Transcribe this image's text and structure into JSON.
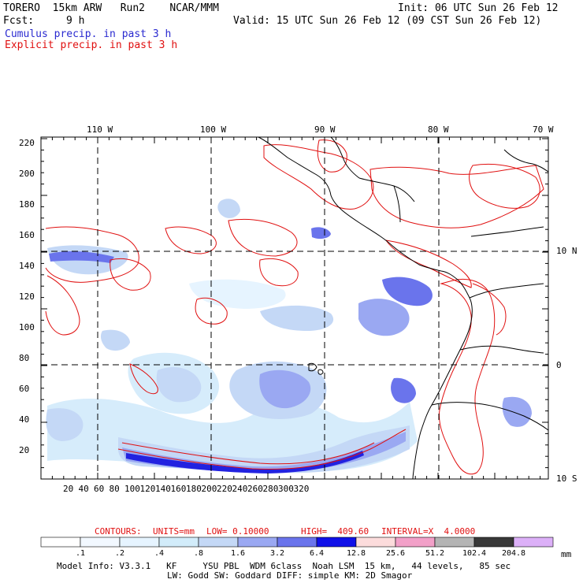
{
  "header": {
    "title_left": "TORERO  15km ARW   Run2    NCAR/MMM",
    "init": "Init: 06 UTC Sun 26 Feb 12",
    "fcst_label": "Fcst:",
    "fcst_value": "9 h",
    "valid": "Valid: 15 UTC Sun 26 Feb 12 (09 CST Sun 26 Feb 12)",
    "line1": "Cumulus precip. in past 3 h",
    "line2": "Explicit precip. in past 3 h"
  },
  "map": {
    "top_lon_labels": [
      "110 W",
      "100 W",
      "90 W",
      "80 W",
      "70 W"
    ],
    "right_lat_labels": [
      "10 N",
      "0",
      "10 S"
    ],
    "y_ticks": [
      "220",
      "200",
      "180",
      "160",
      "140",
      "120",
      "100",
      "80",
      "60",
      "40",
      "20"
    ],
    "x_ticks": [
      "20",
      "40",
      "60",
      "80",
      "100",
      "120",
      "140",
      "160",
      "180",
      "200",
      "220",
      "240",
      "260",
      "280",
      "300",
      "320"
    ]
  },
  "contours": {
    "label": "CONTOURS:",
    "units": "UNITS=mm",
    "low": "LOW= 0.10000",
    "high": "HIGH=  409.60",
    "interval": "INTERVAL=X  4.0000"
  },
  "legend": {
    "labels": [
      ".1",
      ".2",
      ".4",
      ".8",
      "1.6",
      "3.2",
      "6.4",
      "12.8",
      "25.6",
      "51.2",
      "102.4",
      "204.8"
    ],
    "unit": "mm",
    "colors": [
      "#ffffff",
      "#f2f8ff",
      "#e6f4ff",
      "#d2ecfa",
      "#c4d8f6",
      "#9aa8f2",
      "#6a74ec",
      "#1010e8",
      "#fcdcdc",
      "#f2a0c8",
      "#b4b4b4",
      "#383838",
      "#dcb0f8"
    ]
  },
  "footer": {
    "line1": "Model Info: V3.3.1   KF     YSU PBL  WDM 6class  Noah LSM  15 km,   44 levels,   85 sec",
    "line2": "LW: Godd SW: Goddard DIFF: simple KM: 2D Smagor"
  }
}
